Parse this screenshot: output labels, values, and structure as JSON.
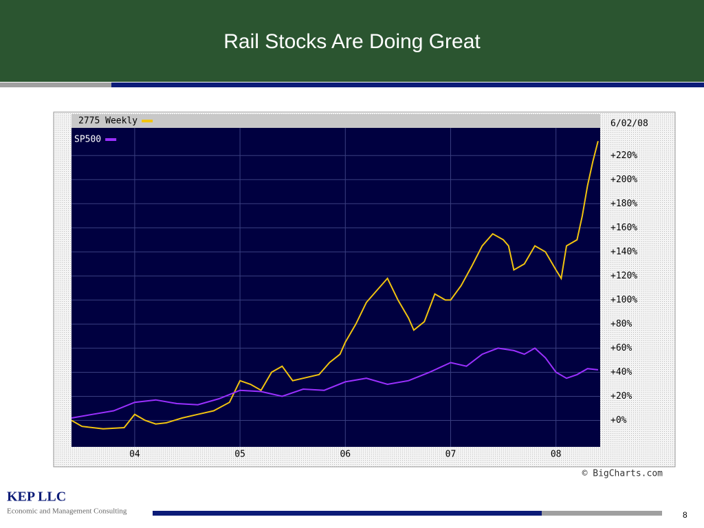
{
  "title": "Rail Stocks Are Doing Great",
  "footer": {
    "company": "KEP LLC",
    "tagline": "Economic and Management Consulting",
    "page": "8"
  },
  "chart_data": {
    "type": "line",
    "date_label": "6/02/08",
    "source": "© BigCharts.com",
    "xlim": [
      2003.4,
      2008.42
    ],
    "xticks": [
      {
        "value": 2004,
        "label": "04"
      },
      {
        "value": 2005,
        "label": "05"
      },
      {
        "value": 2006,
        "label": "06"
      },
      {
        "value": 2007,
        "label": "07"
      },
      {
        "value": 2008,
        "label": "08"
      }
    ],
    "ylim": [
      -22,
      243
    ],
    "yticks": [
      {
        "value": 0,
        "label": "+0%"
      },
      {
        "value": 20,
        "label": "+20%"
      },
      {
        "value": 40,
        "label": "+40%"
      },
      {
        "value": 60,
        "label": "+60%"
      },
      {
        "value": 80,
        "label": "+80%"
      },
      {
        "value": 100,
        "label": "+100%"
      },
      {
        "value": 120,
        "label": "+120%"
      },
      {
        "value": 140,
        "label": "+140%"
      },
      {
        "value": 160,
        "label": "+160%"
      },
      {
        "value": 180,
        "label": "+180%"
      },
      {
        "value": 200,
        "label": "+200%"
      },
      {
        "value": 220,
        "label": "+220%"
      }
    ],
    "grid": true,
    "series": [
      {
        "name": "2775 Weekly",
        "color": "#f2c40f",
        "x": [
          2003.4,
          2003.5,
          2003.7,
          2003.9,
          2004.0,
          2004.1,
          2004.2,
          2004.3,
          2004.45,
          2004.6,
          2004.75,
          2004.9,
          2005.0,
          2005.1,
          2005.2,
          2005.3,
          2005.4,
          2005.5,
          2005.6,
          2005.75,
          2005.85,
          2005.95,
          2006.0,
          2006.1,
          2006.2,
          2006.3,
          2006.4,
          2006.5,
          2006.6,
          2006.65,
          2006.75,
          2006.85,
          2006.95,
          2007.0,
          2007.1,
          2007.2,
          2007.3,
          2007.4,
          2007.5,
          2007.55,
          2007.6,
          2007.7,
          2007.8,
          2007.9,
          2008.0,
          2008.05,
          2008.1,
          2008.2,
          2008.25,
          2008.3,
          2008.35,
          2008.4
        ],
        "values": [
          0,
          -5,
          -7,
          -6,
          5,
          0,
          -3,
          -2,
          2,
          5,
          8,
          15,
          33,
          30,
          25,
          40,
          45,
          33,
          35,
          38,
          48,
          55,
          65,
          80,
          98,
          108,
          118,
          100,
          85,
          75,
          82,
          105,
          100,
          100,
          112,
          128,
          145,
          155,
          150,
          145,
          125,
          130,
          145,
          140,
          125,
          118,
          145,
          150,
          170,
          195,
          215,
          232
        ]
      },
      {
        "name": "SP500",
        "color": "#9b30ff",
        "x": [
          2003.4,
          2003.6,
          2003.8,
          2004.0,
          2004.2,
          2004.4,
          2004.6,
          2004.8,
          2005.0,
          2005.2,
          2005.4,
          2005.6,
          2005.8,
          2006.0,
          2006.2,
          2006.4,
          2006.6,
          2006.8,
          2007.0,
          2007.15,
          2007.3,
          2007.45,
          2007.6,
          2007.7,
          2007.8,
          2007.9,
          2008.0,
          2008.1,
          2008.2,
          2008.3,
          2008.4
        ],
        "values": [
          2,
          5,
          8,
          15,
          17,
          14,
          13,
          18,
          25,
          24,
          20,
          26,
          25,
          32,
          35,
          30,
          33,
          40,
          48,
          45,
          55,
          60,
          58,
          55,
          60,
          52,
          40,
          35,
          38,
          43,
          42
        ]
      }
    ]
  }
}
